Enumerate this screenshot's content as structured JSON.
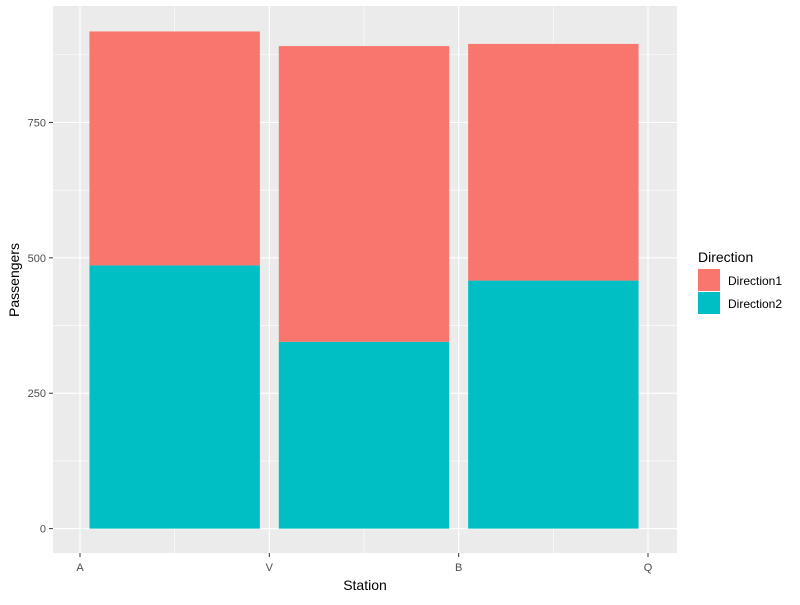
{
  "chart_data": {
    "type": "bar",
    "stacked": true,
    "categories": [
      "A",
      "V",
      "B",
      "Q"
    ],
    "x_tick_labels": [
      "A",
      "V",
      "B",
      "Q"
    ],
    "bars": [
      {
        "x_between": [
          "A",
          "V"
        ],
        "values": {
          "Direction1": 432,
          "Direction2": 486
        }
      },
      {
        "x_between": [
          "V",
          "B"
        ],
        "values": {
          "Direction1": 546,
          "Direction2": 345
        }
      },
      {
        "x_between": [
          "B",
          "Q"
        ],
        "values": {
          "Direction1": 437,
          "Direction2": 458
        }
      }
    ],
    "series": [
      {
        "name": "Direction1",
        "color": "#F8766D"
      },
      {
        "name": "Direction2",
        "color": "#00BFC4"
      }
    ],
    "xlabel": "Station",
    "ylabel": "Passengers",
    "ylim": [
      -45,
      965
    ],
    "yticks": [
      0,
      250,
      500,
      750
    ],
    "ytick_labels": [
      "0",
      "250",
      "500",
      "750"
    ],
    "grid": true,
    "panel_background": "#EBEBEB",
    "legend": {
      "title": "Direction",
      "position": "right"
    }
  }
}
